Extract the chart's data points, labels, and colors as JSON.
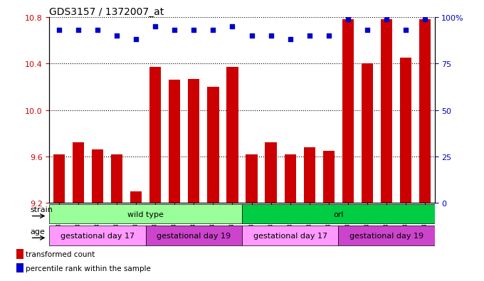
{
  "title": "GDS3157 / 1372007_at",
  "samples": [
    "GSM187669",
    "GSM187670",
    "GSM187671",
    "GSM187672",
    "GSM187673",
    "GSM187674",
    "GSM187675",
    "GSM187676",
    "GSM187677",
    "GSM187678",
    "GSM187679",
    "GSM187680",
    "GSM187681",
    "GSM187682",
    "GSM187683",
    "GSM187684",
    "GSM187685",
    "GSM187686",
    "GSM187687",
    "GSM187688"
  ],
  "transformed_count": [
    9.62,
    9.72,
    9.66,
    9.62,
    9.3,
    10.37,
    10.26,
    10.27,
    10.2,
    10.37,
    9.62,
    9.72,
    9.62,
    9.68,
    9.65,
    10.78,
    10.4,
    10.78,
    10.45,
    10.78
  ],
  "percentile_rank": [
    93,
    93,
    93,
    90,
    88,
    95,
    93,
    93,
    93,
    95,
    90,
    90,
    88,
    90,
    90,
    99,
    93,
    99,
    93,
    99
  ],
  "ylim_left": [
    9.2,
    10.8
  ],
  "ylim_right": [
    0,
    100
  ],
  "yticks_left": [
    9.2,
    9.6,
    10.0,
    10.4,
    10.8
  ],
  "yticks_right": [
    0,
    25,
    50,
    75,
    100
  ],
  "bar_color": "#cc0000",
  "dot_color": "#0000cc",
  "strain_bands": [
    {
      "label": "wild type",
      "start": 0,
      "end": 9,
      "color": "#99ff99"
    },
    {
      "label": "orl",
      "start": 10,
      "end": 19,
      "color": "#00cc44"
    }
  ],
  "age_bands": [
    {
      "label": "gestational day 17",
      "start": 0,
      "end": 4,
      "color": "#ff99ff"
    },
    {
      "label": "gestational day 19",
      "start": 5,
      "end": 9,
      "color": "#cc44cc"
    },
    {
      "label": "gestational day 17",
      "start": 10,
      "end": 14,
      "color": "#ff99ff"
    },
    {
      "label": "gestational day 19",
      "start": 15,
      "end": 19,
      "color": "#cc44cc"
    }
  ],
  "legend_items": [
    {
      "label": "transformed count",
      "color": "#cc0000"
    },
    {
      "label": "percentile rank within the sample",
      "color": "#0000cc"
    }
  ]
}
